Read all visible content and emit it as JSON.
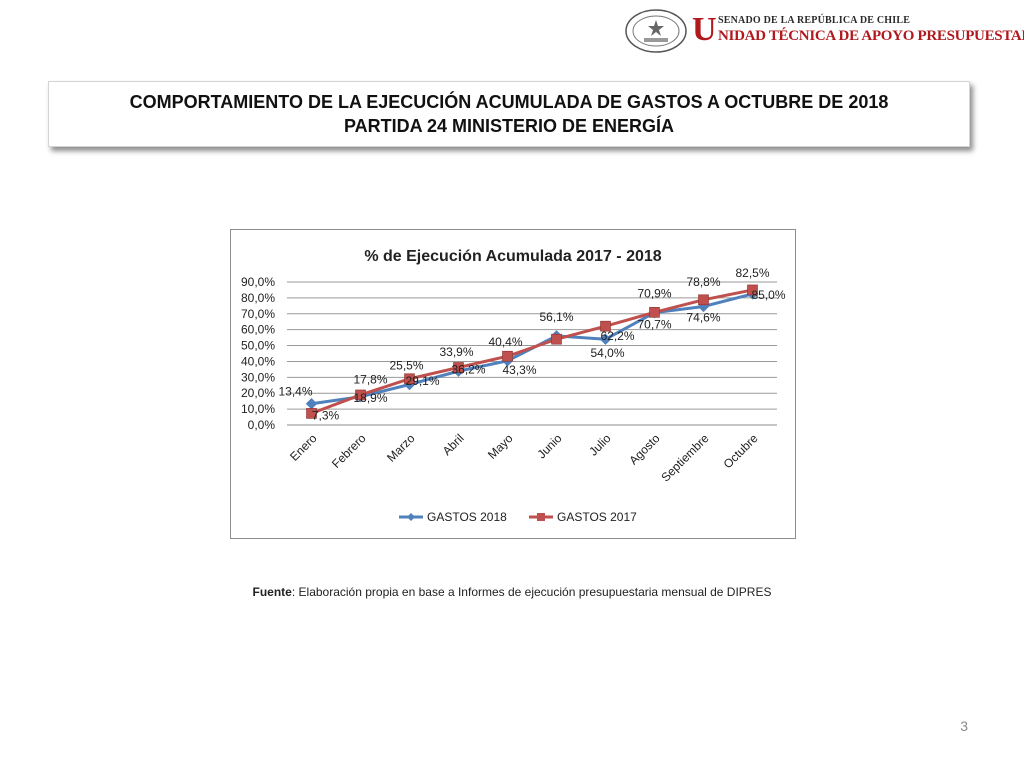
{
  "header": {
    "org_small": "SENADO DE LA REPÚBLICA DE CHILE",
    "org_big_initial": "U",
    "org_big_rest": "NIDAD TÉCNICA DE APOYO PRESUPUESTARIO",
    "seal_text": "REPÚBLICA DE CHILE · SENADO"
  },
  "title": {
    "line1": "COMPORTAMIENTO DE LA EJECUCIÓN ACUMULADA DE GASTOS A OCTUBRE DE 2018",
    "line2": "PARTIDA 24 MINISTERIO DE ENERGÍA"
  },
  "chart_data": {
    "type": "line",
    "title": "% de Ejecución Acumulada 2017 - 2018",
    "categories": [
      "Enero",
      "Febrero",
      "Marzo",
      "Abril",
      "Mayo",
      "Junio",
      "Julio",
      "Agosto",
      "Septiembre",
      "Octubre"
    ],
    "ylim": [
      0,
      90
    ],
    "yticks": [
      "0,0%",
      "10,0%",
      "20,0%",
      "30,0%",
      "40,0%",
      "50,0%",
      "60,0%",
      "70,0%",
      "80,0%",
      "90,0%"
    ],
    "grid": true,
    "legend_position": "bottom",
    "series": [
      {
        "name": "GASTOS 2018",
        "color": "#4f81bd",
        "marker": "diamond",
        "values": [
          13.4,
          17.8,
          25.5,
          33.9,
          40.4,
          56.1,
          54.0,
          70.7,
          74.6,
          82.5
        ],
        "labels": [
          "13,4%",
          "17,8%",
          "25,5%",
          "33,9%",
          "40,4%",
          "56,1%",
          "54,0%",
          "70,7%",
          "74,6%",
          "82,5%"
        ]
      },
      {
        "name": "GASTOS 2017",
        "color": "#c0504d",
        "marker": "square",
        "values": [
          7.3,
          18.9,
          29.1,
          36.2,
          43.3,
          54.0,
          62.2,
          70.9,
          78.8,
          85.0
        ],
        "labels": [
          "7,3%",
          "18,9%",
          "29,1%",
          "36,2%",
          "43,3%",
          "",
          "62,2%",
          "70,9%",
          "78,8%",
          "85,0%"
        ]
      }
    ]
  },
  "source": {
    "label": "Fuente",
    "text": ": Elaboración propia en base  a Informes de ejecución presupuestaria mensual de DIPRES"
  },
  "page_number": "3"
}
